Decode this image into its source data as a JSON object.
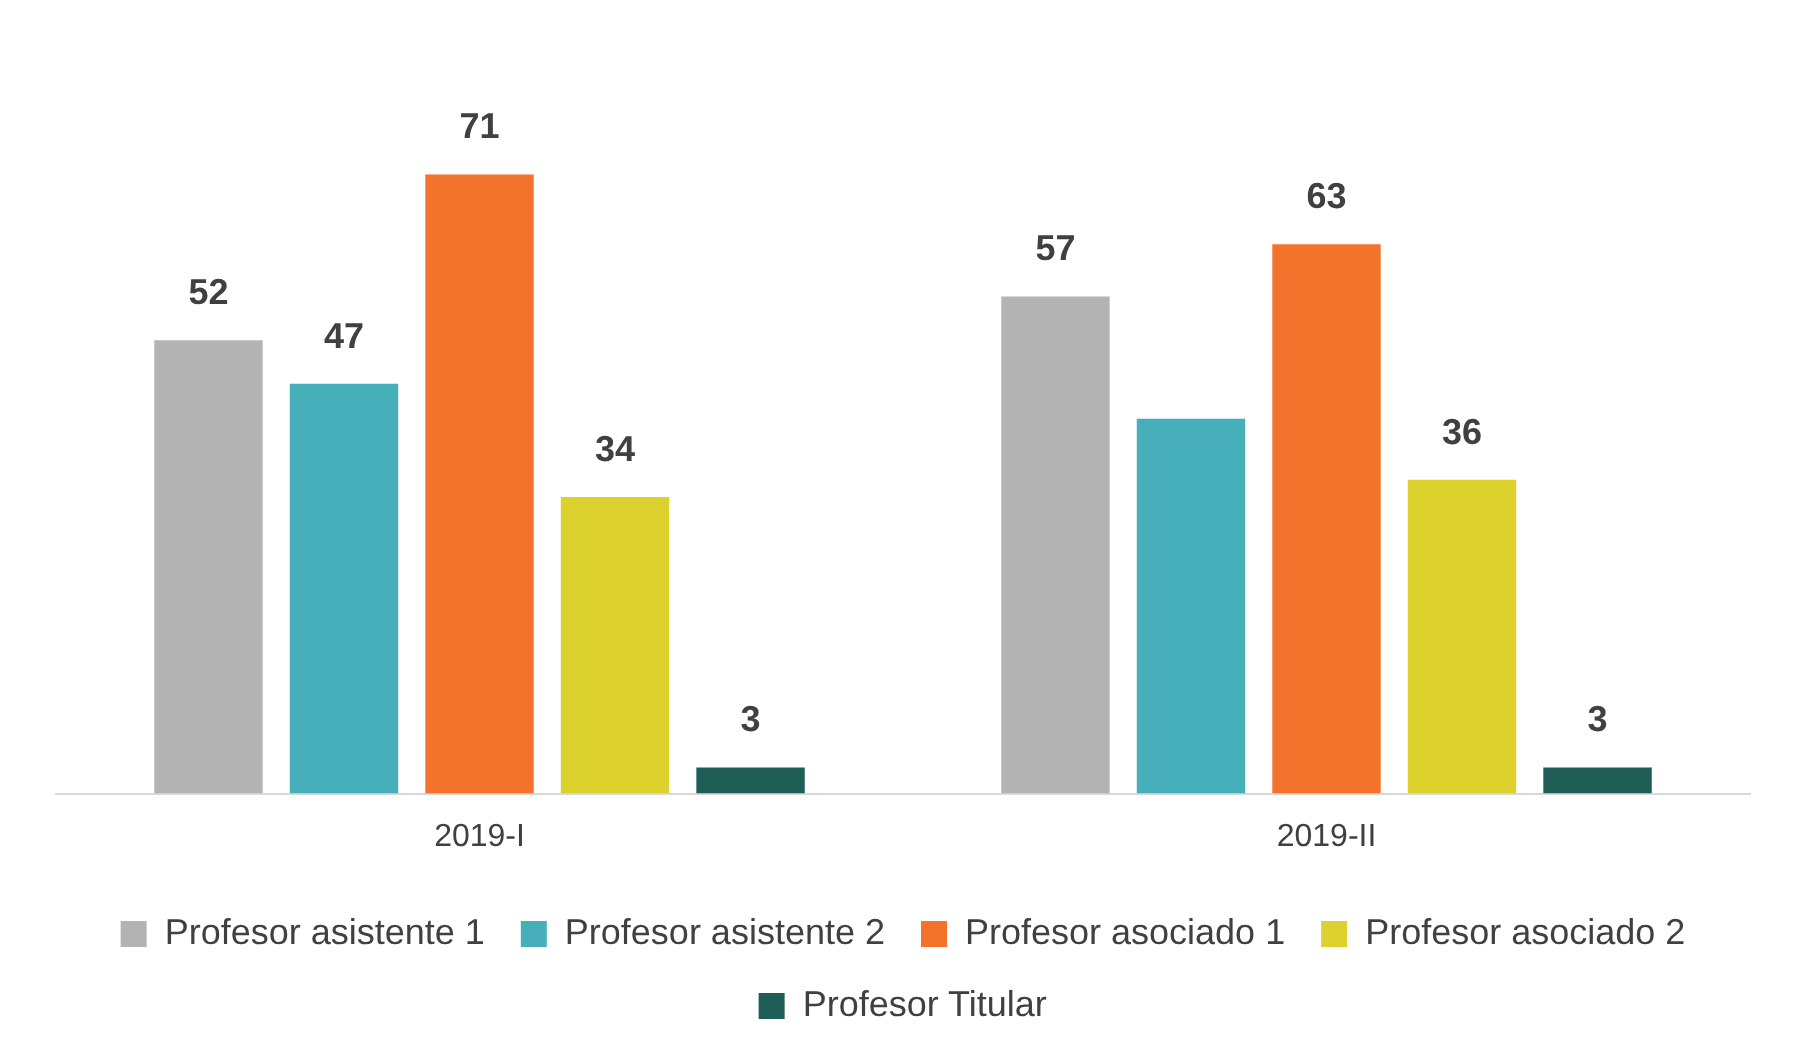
{
  "chart_data": {
    "type": "bar",
    "categories": [
      "2019-I",
      "2019-II"
    ],
    "series": [
      {
        "name": "Profesor asistente 1",
        "color": "#b3b3b3",
        "values": [
          52,
          57
        ],
        "value_labels": [
          "52",
          "57"
        ]
      },
      {
        "name": "Profesor asistente 2",
        "color": "#47afb9",
        "values": [
          47,
          43
        ],
        "value_labels": [
          "47",
          null
        ]
      },
      {
        "name": "Profesor asociado 1",
        "color": "#f3722c",
        "values": [
          71,
          63
        ],
        "value_labels": [
          "71",
          "63"
        ]
      },
      {
        "name": "Profesor asociado 2",
        "color": "#ddd12d",
        "values": [
          34,
          36
        ],
        "value_labels": [
          "34",
          "36"
        ]
      },
      {
        "name": "Profesor Titular",
        "color": "#1f5e57",
        "values": [
          3,
          3
        ],
        "value_labels": [
          "3",
          "3"
        ]
      }
    ],
    "legend": "bottom",
    "grid": false
  }
}
